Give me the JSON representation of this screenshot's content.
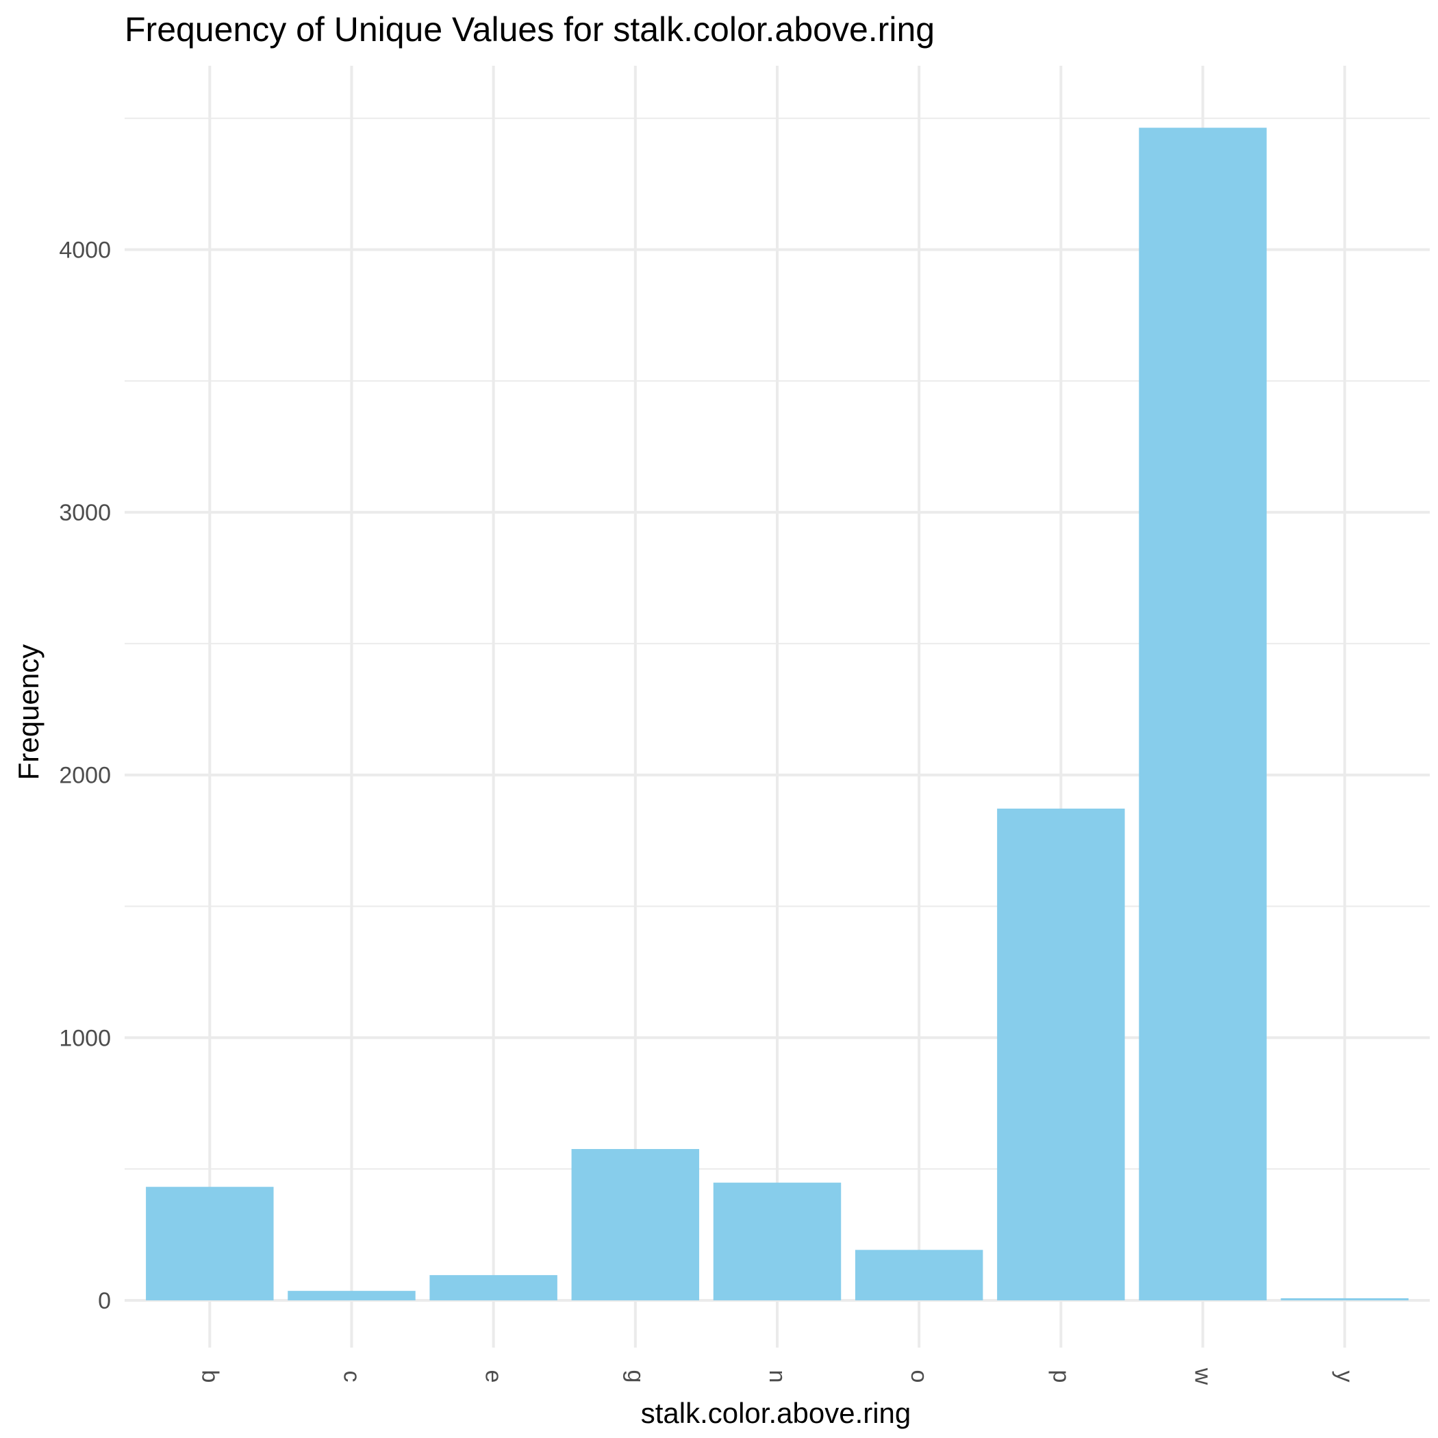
{
  "chart_data": {
    "type": "bar",
    "title": "Frequency of Unique Values for stalk.color.above.ring",
    "xlabel": "stalk.color.above.ring",
    "ylabel": "Frequency",
    "categories": [
      "b",
      "c",
      "e",
      "g",
      "n",
      "o",
      "p",
      "w",
      "y"
    ],
    "values": [
      432,
      36,
      96,
      576,
      448,
      192,
      1872,
      4464,
      8
    ],
    "ylim": [
      -180,
      4700
    ],
    "yticks": [
      0,
      1000,
      2000,
      3000,
      4000
    ],
    "grid": true,
    "legend": "none",
    "bar_color": "#87CDEB",
    "x_tick_rotation": "vertical"
  }
}
